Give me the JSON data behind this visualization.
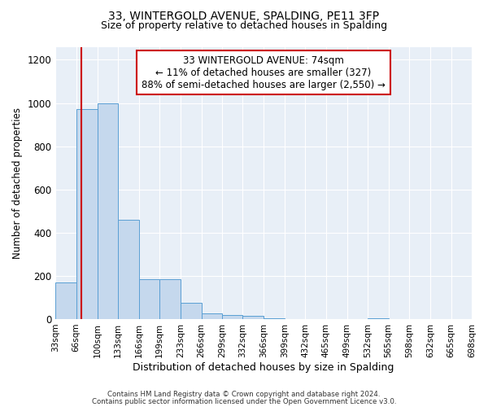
{
  "title": "33, WINTERGOLD AVENUE, SPALDING, PE11 3FP",
  "subtitle": "Size of property relative to detached houses in Spalding",
  "xlabel": "Distribution of detached houses by size in Spalding",
  "ylabel": "Number of detached properties",
  "bin_edges": [
    33,
    66,
    100,
    133,
    166,
    199,
    233,
    266,
    299,
    332,
    366,
    399,
    432,
    465,
    499,
    532,
    565,
    598,
    632,
    665,
    698
  ],
  "bar_values": [
    170,
    970,
    1000,
    460,
    185,
    185,
    75,
    25,
    20,
    15,
    5,
    0,
    0,
    0,
    0,
    5,
    0,
    0,
    0,
    0
  ],
  "bar_color": "#c5d8ed",
  "bar_edge_color": "#5a9fd4",
  "property_line_x": 74,
  "property_line_color": "#cc0000",
  "annotation_line1": "33 WINTERGOLD AVENUE: 74sqm",
  "annotation_line2": "← 11% of detached houses are smaller (327)",
  "annotation_line3": "88% of semi-detached houses are larger (2,550) →",
  "annotation_box_color": "#ffffff",
  "annotation_box_edge_color": "#cc0000",
  "ylim": [
    0,
    1260
  ],
  "yticks": [
    0,
    200,
    400,
    600,
    800,
    1000,
    1200
  ],
  "tick_labels": [
    "33sqm",
    "66sqm",
    "100sqm",
    "133sqm",
    "166sqm",
    "199sqm",
    "233sqm",
    "266sqm",
    "299sqm",
    "332sqm",
    "366sqm",
    "399sqm",
    "432sqm",
    "465sqm",
    "499sqm",
    "532sqm",
    "565sqm",
    "598sqm",
    "632sqm",
    "665sqm",
    "698sqm"
  ],
  "footer_line1": "Contains HM Land Registry data © Crown copyright and database right 2024.",
  "footer_line2": "Contains public sector information licensed under the Open Government Licence v3.0.",
  "background_color": "#ffffff",
  "plot_bg_color": "#e8eff7"
}
